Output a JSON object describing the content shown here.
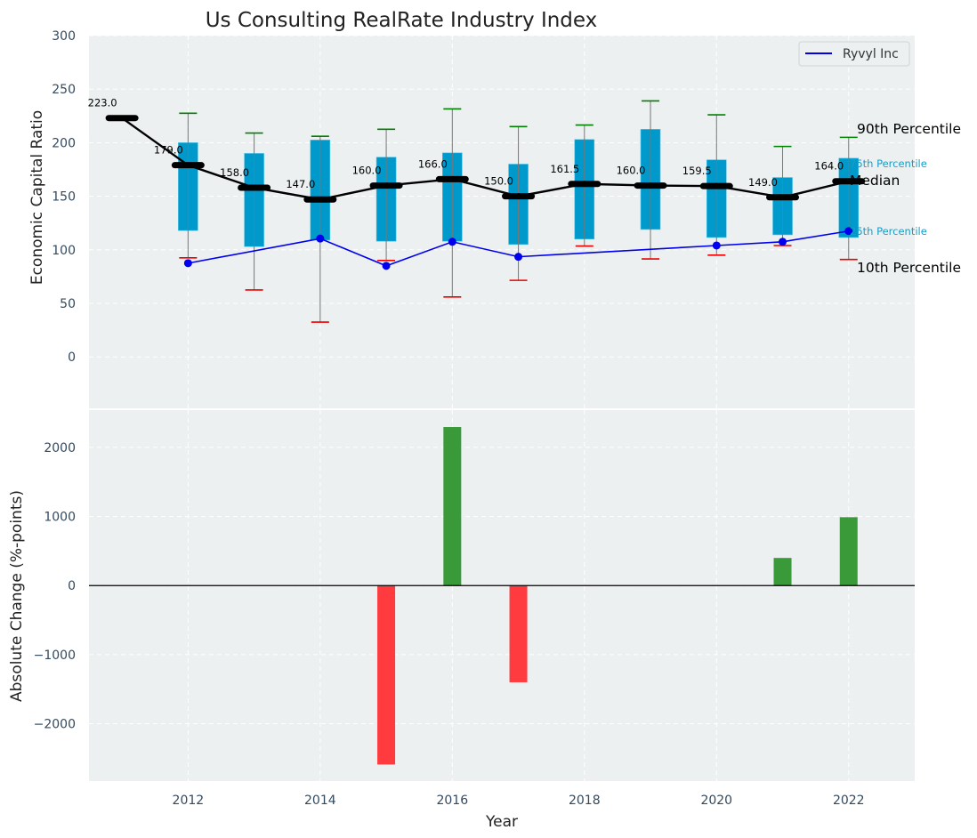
{
  "chart_data": [
    {
      "type": "box",
      "title": "Us Consulting RealRate Industry Index",
      "xlabel": "",
      "ylabel": "Economic Capital Ratio",
      "ylim": [
        -48,
        300
      ],
      "xlim": [
        2010.5,
        2023.0
      ],
      "yticks": [
        0,
        50,
        100,
        150,
        200,
        250,
        300
      ],
      "grid": true,
      "legend": {
        "position": "top-right",
        "entries": [
          {
            "label": "Ryvyl Inc",
            "color": "#0000ee"
          }
        ]
      },
      "years": [
        2011,
        2012,
        2013,
        2014,
        2015,
        2016,
        2017,
        2018,
        2019,
        2020,
        2021,
        2022
      ],
      "median": [
        223.0,
        179.0,
        158.0,
        147.0,
        160.0,
        166.0,
        150.0,
        161.5,
        160.0,
        159.5,
        149.0,
        164.0
      ],
      "median_labels": [
        "223.0",
        "179.0",
        "158.0",
        "147.0",
        "160.0",
        "166.0",
        "150.0",
        "161.5",
        "160.0",
        "159.5",
        "149.0",
        "164.0"
      ],
      "p75": [
        null,
        200,
        190,
        202.5,
        186.5,
        190.5,
        180,
        203,
        212.5,
        184,
        167.5,
        185.5
      ],
      "p25": [
        null,
        118,
        103,
        109,
        108,
        108,
        105,
        110,
        119,
        111.5,
        114,
        111.5
      ],
      "p90": [
        null,
        227.5,
        209,
        206,
        212.5,
        231.5,
        215,
        216.5,
        239,
        226,
        196.5,
        205
      ],
      "p10": [
        null,
        92.5,
        62.5,
        32.5,
        90,
        56,
        71.5,
        103.5,
        91.5,
        95,
        104,
        91
      ],
      "series": [
        {
          "name": "Ryvyl Inc",
          "color": "#0000ee",
          "x": [
            2012,
            2014,
            2015,
            2016,
            2017,
            2020,
            2021,
            2022
          ],
          "values": [
            87.5,
            110.5,
            85,
            107.5,
            93.5,
            104,
            107.5,
            117.5
          ]
        }
      ],
      "annotations": {
        "p90": "90th Percentile",
        "p75": "75th Percentile",
        "median": "Median",
        "p25": "25th Percentile",
        "p10": "10th Percentile"
      },
      "colors": {
        "box": "#0099cc",
        "median": "#000000",
        "whisker_top": "#008000",
        "whisker_bottom": "#ee0000",
        "background": "#ecf0f1"
      }
    },
    {
      "type": "bar",
      "xlabel": "Year",
      "ylabel": "Absolute Change (%-points)",
      "ylim": [
        -2830,
        2540
      ],
      "yticks": [
        -2000,
        -1000,
        0,
        1000,
        2000
      ],
      "ytick_labels": [
        "−2000",
        "−1000",
        "0",
        "1000",
        "2000"
      ],
      "xticks": [
        2012,
        2014,
        2016,
        2018,
        2020,
        2022
      ],
      "xtick_labels": [
        "2012",
        "2014",
        "2016",
        "2018",
        "2020",
        "2022"
      ],
      "grid": true,
      "categories": [
        2015,
        2016,
        2017,
        2021,
        2022
      ],
      "values": [
        -2590,
        2295,
        -1400,
        400,
        990
      ],
      "colors": {
        "positive": "#3a9a3a",
        "negative": "#ff3b3f"
      }
    }
  ],
  "ytick_labels_top": [
    "0",
    "50",
    "100",
    "150",
    "200",
    "250",
    "300"
  ]
}
